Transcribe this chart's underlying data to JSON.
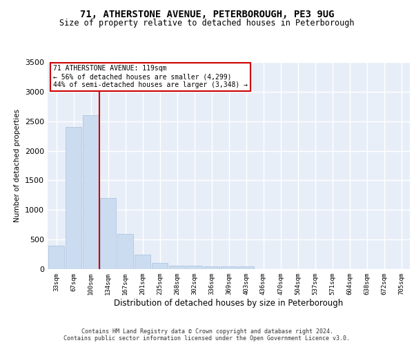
{
  "title1": "71, ATHERSTONE AVENUE, PETERBOROUGH, PE3 9UG",
  "title2": "Size of property relative to detached houses in Peterborough",
  "xlabel": "Distribution of detached houses by size in Peterborough",
  "ylabel": "Number of detached properties",
  "categories": [
    "33sqm",
    "67sqm",
    "100sqm",
    "134sqm",
    "167sqm",
    "201sqm",
    "235sqm",
    "268sqm",
    "302sqm",
    "336sqm",
    "369sqm",
    "403sqm",
    "436sqm",
    "470sqm",
    "504sqm",
    "537sqm",
    "571sqm",
    "604sqm",
    "638sqm",
    "672sqm",
    "705sqm"
  ],
  "values": [
    400,
    2400,
    2600,
    1200,
    600,
    250,
    100,
    60,
    55,
    50,
    50,
    50,
    0,
    0,
    0,
    0,
    0,
    0,
    0,
    0,
    0
  ],
  "bar_color": "#ccdcf0",
  "bar_edge_color": "#a8c0dc",
  "vline_bin": 2,
  "vline_color": "#cc0000",
  "annotation_text": "71 ATHERSTONE AVENUE: 119sqm\n← 56% of detached houses are smaller (4,299)\n44% of semi-detached houses are larger (3,348) →",
  "footer": "Contains HM Land Registry data © Crown copyright and database right 2024.\nContains public sector information licensed under the Open Government Licence v3.0.",
  "ylim_max": 3500,
  "yticks": [
    0,
    500,
    1000,
    1500,
    2000,
    2500,
    3000,
    3500
  ],
  "bg_color": "#e8eef8",
  "grid_color": "white",
  "title1_fontsize": 10,
  "title2_fontsize": 8.5
}
